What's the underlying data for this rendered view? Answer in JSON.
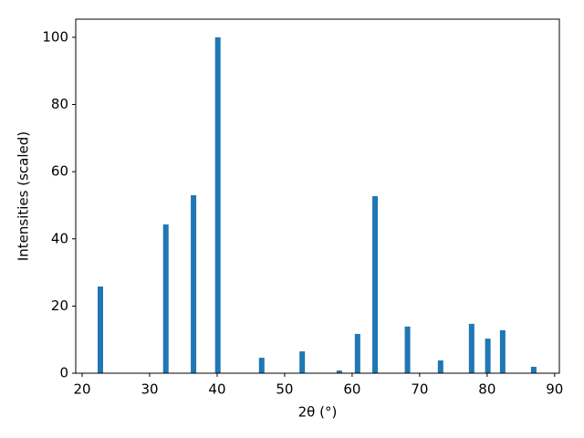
{
  "chart_data": {
    "type": "bar",
    "x": [
      22.7,
      32.4,
      36.5,
      40.1,
      46.6,
      52.6,
      58.1,
      60.8,
      63.4,
      68.2,
      73.1,
      77.7,
      80.1,
      82.3,
      86.9
    ],
    "values": [
      25.8,
      44.3,
      53.0,
      100,
      4.6,
      6.5,
      0.8,
      11.7,
      52.7,
      13.9,
      3.8,
      14.7,
      10.3,
      12.8,
      1.9
    ],
    "color": "#1f77b4",
    "xlabel": "2θ (°)",
    "ylabel": "Intensities (scaled)",
    "xlim": [
      19.05,
      90.7
    ],
    "ylim": [
      0,
      105.4
    ],
    "xticks": [
      20,
      30,
      40,
      50,
      60,
      70,
      80,
      90
    ],
    "yticks": [
      0,
      20,
      40,
      60,
      80,
      100
    ],
    "grid": false
  }
}
